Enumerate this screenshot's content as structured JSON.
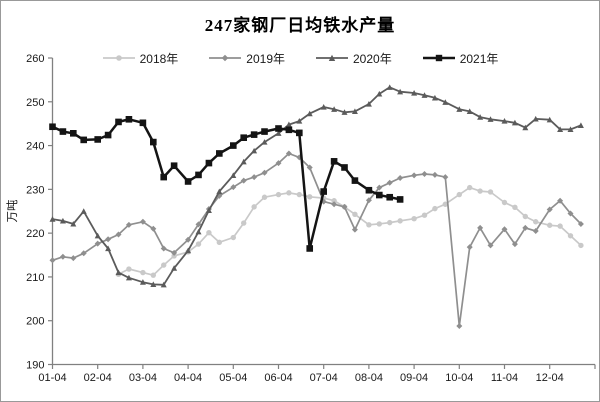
{
  "chart_data": {
    "type": "line",
    "title": "247家钢厂日均铁水产量",
    "ylabel": "万吨",
    "ylim": [
      190,
      260
    ],
    "ytick_step": 10,
    "x_tick_labels": [
      "01-04",
      "02-04",
      "03-04",
      "04-04",
      "05-04",
      "06-04",
      "07-04",
      "08-04",
      "09-04",
      "10-04",
      "11-04",
      "12-04"
    ],
    "legend_position": "top",
    "grid": false,
    "axis_color": "#808080",
    "series": [
      {
        "name": "2018年",
        "color": "#c9c9c9",
        "marker": "circle",
        "line_width": 1.7,
        "points": [
          [
            "02-18",
            210.6
          ],
          [
            "02-25",
            211.8
          ],
          [
            "03-04",
            211.0
          ],
          [
            "03-11",
            210.4
          ],
          [
            "03-18",
            212.7
          ],
          [
            "03-25",
            214.8
          ],
          [
            "04-04",
            215.7
          ],
          [
            "04-11",
            217.5
          ],
          [
            "04-18",
            220.1
          ],
          [
            "04-25",
            217.9
          ],
          [
            "05-04",
            219.0
          ],
          [
            "05-11",
            222.3
          ],
          [
            "05-18",
            226.0
          ],
          [
            "05-25",
            228.2
          ],
          [
            "06-04",
            228.8
          ],
          [
            "06-11",
            229.2
          ],
          [
            "06-18",
            228.8
          ],
          [
            "06-25",
            228.3
          ],
          [
            "07-04",
            228.0
          ],
          [
            "07-11",
            227.4
          ],
          [
            "07-18",
            226.0
          ],
          [
            "07-25",
            224.3
          ],
          [
            "08-04",
            221.9
          ],
          [
            "08-11",
            222.1
          ],
          [
            "08-18",
            222.4
          ],
          [
            "08-25",
            222.8
          ],
          [
            "09-04",
            223.3
          ],
          [
            "09-11",
            224.1
          ],
          [
            "09-18",
            225.6
          ],
          [
            "09-25",
            226.6
          ],
          [
            "10-04",
            228.8
          ],
          [
            "10-11",
            230.4
          ],
          [
            "10-18",
            229.6
          ],
          [
            "10-25",
            229.4
          ],
          [
            "11-04",
            227.0
          ],
          [
            "11-11",
            225.9
          ],
          [
            "11-18",
            223.8
          ],
          [
            "11-25",
            222.6
          ],
          [
            "12-04",
            221.8
          ],
          [
            "12-11",
            221.6
          ],
          [
            "12-18",
            219.4
          ],
          [
            "12-25",
            217.2
          ]
        ]
      },
      {
        "name": "2019年",
        "color": "#8f8f8f",
        "marker": "diamond",
        "line_width": 1.7,
        "points": [
          [
            "01-04",
            213.8
          ],
          [
            "01-11",
            214.6
          ],
          [
            "01-18",
            214.3
          ],
          [
            "01-25",
            215.4
          ],
          [
            "02-04",
            217.6
          ],
          [
            "02-11",
            218.6
          ],
          [
            "02-18",
            219.7
          ],
          [
            "02-25",
            221.9
          ],
          [
            "03-04",
            222.6
          ],
          [
            "03-11",
            221.0
          ],
          [
            "03-18",
            216.5
          ],
          [
            "03-25",
            215.5
          ],
          [
            "04-04",
            218.5
          ],
          [
            "04-11",
            222.0
          ],
          [
            "04-18",
            225.5
          ],
          [
            "04-25",
            228.5
          ],
          [
            "05-04",
            230.5
          ],
          [
            "05-11",
            232.0
          ],
          [
            "05-18",
            232.8
          ],
          [
            "05-25",
            233.8
          ],
          [
            "06-04",
            236.0
          ],
          [
            "06-11",
            238.2
          ],
          [
            "06-18",
            237.3
          ],
          [
            "06-25",
            235.0
          ],
          [
            "07-04",
            227.2
          ],
          [
            "07-11",
            226.6
          ],
          [
            "07-18",
            226.0
          ],
          [
            "07-25",
            220.8
          ],
          [
            "08-04",
            227.5
          ],
          [
            "08-11",
            230.4
          ],
          [
            "08-18",
            231.5
          ],
          [
            "08-25",
            232.6
          ],
          [
            "09-04",
            233.2
          ],
          [
            "09-11",
            233.5
          ],
          [
            "09-18",
            233.3
          ],
          [
            "09-25",
            232.8
          ],
          [
            "10-04",
            198.8
          ],
          [
            "10-11",
            216.8
          ],
          [
            "10-18",
            221.2
          ],
          [
            "10-25",
            217.2
          ],
          [
            "11-04",
            220.9
          ],
          [
            "11-11",
            217.5
          ],
          [
            "11-18",
            221.2
          ],
          [
            "11-25",
            220.5
          ],
          [
            "12-04",
            225.4
          ],
          [
            "12-11",
            227.4
          ],
          [
            "12-18",
            224.5
          ],
          [
            "12-25",
            222.1
          ]
        ]
      },
      {
        "name": "2020年",
        "color": "#5b5b5b",
        "marker": "triangle",
        "line_width": 1.8,
        "points": [
          [
            "01-04",
            223.2
          ],
          [
            "01-11",
            222.8
          ],
          [
            "01-18",
            222.1
          ],
          [
            "01-25",
            225.0
          ],
          [
            "02-04",
            219.4
          ],
          [
            "02-11",
            216.5
          ],
          [
            "02-18",
            211.0
          ],
          [
            "02-25",
            209.8
          ],
          [
            "03-04",
            208.8
          ],
          [
            "03-11",
            208.3
          ],
          [
            "03-18",
            208.2
          ],
          [
            "03-25",
            212.0
          ],
          [
            "04-04",
            216.0
          ],
          [
            "04-11",
            220.3
          ],
          [
            "04-18",
            225.2
          ],
          [
            "04-25",
            229.5
          ],
          [
            "05-04",
            233.2
          ],
          [
            "05-11",
            236.3
          ],
          [
            "05-18",
            238.8
          ],
          [
            "05-25",
            240.8
          ],
          [
            "06-04",
            242.8
          ],
          [
            "06-11",
            244.8
          ],
          [
            "06-18",
            245.6
          ],
          [
            "06-25",
            247.3
          ],
          [
            "07-04",
            248.8
          ],
          [
            "07-11",
            248.3
          ],
          [
            "07-18",
            247.6
          ],
          [
            "07-25",
            247.8
          ],
          [
            "08-04",
            249.5
          ],
          [
            "08-11",
            251.8
          ],
          [
            "08-18",
            253.3
          ],
          [
            "08-25",
            252.3
          ],
          [
            "09-04",
            252.0
          ],
          [
            "09-11",
            251.5
          ],
          [
            "09-18",
            250.9
          ],
          [
            "09-25",
            249.9
          ],
          [
            "10-04",
            248.3
          ],
          [
            "10-11",
            247.8
          ],
          [
            "10-18",
            246.5
          ],
          [
            "10-25",
            246.0
          ],
          [
            "11-04",
            245.6
          ],
          [
            "11-11",
            245.2
          ],
          [
            "11-18",
            244.1
          ],
          [
            "11-25",
            246.1
          ],
          [
            "12-04",
            245.9
          ],
          [
            "12-11",
            243.7
          ],
          [
            "12-18",
            243.7
          ],
          [
            "12-25",
            244.6
          ]
        ]
      },
      {
        "name": "2021年",
        "color": "#141414",
        "marker": "square",
        "line_width": 2.5,
        "points": [
          [
            "01-04",
            244.3
          ],
          [
            "01-11",
            243.2
          ],
          [
            "01-18",
            242.8
          ],
          [
            "01-25",
            241.3
          ],
          [
            "02-04",
            241.4
          ],
          [
            "02-11",
            242.4
          ],
          [
            "02-18",
            245.4
          ],
          [
            "02-25",
            246.0
          ],
          [
            "03-04",
            245.2
          ],
          [
            "03-11",
            240.8
          ],
          [
            "03-18",
            232.8
          ],
          [
            "03-25",
            235.4
          ],
          [
            "04-04",
            231.8
          ],
          [
            "04-11",
            233.3
          ],
          [
            "04-18",
            236.0
          ],
          [
            "04-25",
            238.2
          ],
          [
            "05-04",
            240.0
          ],
          [
            "05-11",
            241.8
          ],
          [
            "05-18",
            242.5
          ],
          [
            "05-25",
            243.2
          ],
          [
            "06-04",
            243.9
          ],
          [
            "06-11",
            243.6
          ],
          [
            "06-18",
            242.9
          ],
          [
            "06-25",
            216.5
          ],
          [
            "07-04",
            229.5
          ],
          [
            "07-11",
            236.4
          ],
          [
            "07-18",
            235.0
          ],
          [
            "07-25",
            232.0
          ],
          [
            "08-04",
            229.8
          ],
          [
            "08-11",
            228.7
          ],
          [
            "08-18",
            228.2
          ],
          [
            "08-25",
            227.7
          ]
        ]
      }
    ]
  }
}
